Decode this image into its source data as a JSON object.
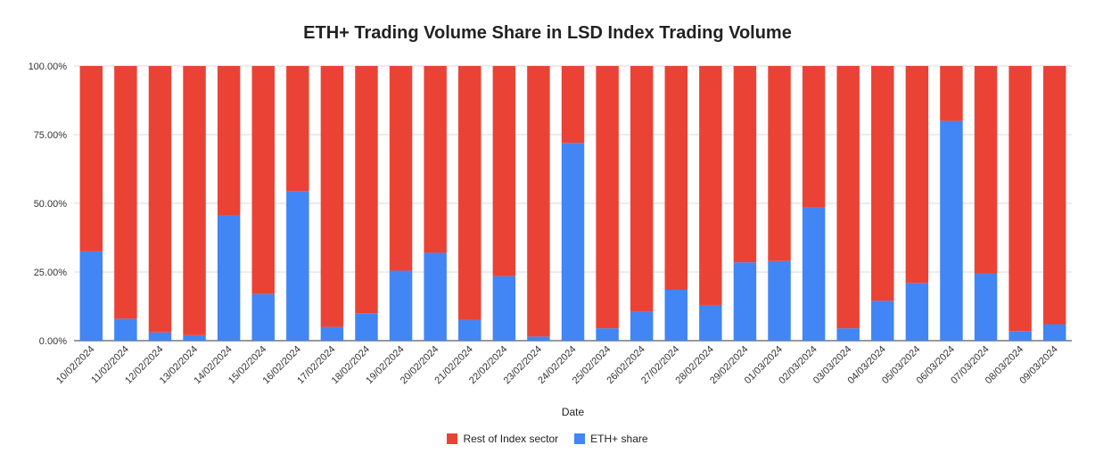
{
  "chart_data": {
    "type": "bar",
    "stacked": true,
    "title": "ETH+ Trading Volume Share in LSD Index Trading Volume",
    "xlabel": "Date",
    "ylabel": "",
    "ylim": [
      0,
      100
    ],
    "yticks": [
      "0.00%",
      "25.00%",
      "50.00%",
      "75.00%",
      "100.00%"
    ],
    "grid": true,
    "legend_position": "bottom",
    "categories": [
      "10/02/2024",
      "11/02/2024",
      "12/02/2024",
      "13/02/2024",
      "14/02/2024",
      "15/02/2024",
      "16/02/2024",
      "17/02/2024",
      "18/02/2024",
      "19/02/2024",
      "20/02/2024",
      "21/02/2024",
      "22/02/2024",
      "23/02/2024",
      "24/02/2024",
      "25/02/2024",
      "26/02/2024",
      "27/02/2024",
      "28/02/2024",
      "29/02/2024",
      "01/03/2024",
      "02/03/2024",
      "03/03/2024",
      "04/03/2024",
      "05/03/2024",
      "06/03/2024",
      "07/03/2024",
      "08/03/2024",
      "09/03/2024"
    ],
    "series": [
      {
        "name": "ETH+ share",
        "color": "#4285f4",
        "values": [
          32.5,
          8,
          3,
          2,
          45.5,
          17,
          54.5,
          5,
          10,
          25.5,
          32,
          7.5,
          23.5,
          1.5,
          72,
          4.5,
          10.5,
          18.5,
          13,
          28.5,
          29,
          48.5,
          4.5,
          14.5,
          21,
          80,
          24.5,
          3.5,
          6
        ]
      },
      {
        "name": "Rest of Index sector",
        "color": "#ea4335",
        "values": [
          67.5,
          92,
          97,
          98,
          54.5,
          83,
          45.5,
          95,
          90,
          74.5,
          68,
          92.5,
          76.5,
          98.5,
          28,
          95.5,
          89.5,
          81.5,
          87,
          71.5,
          71,
          51.5,
          95.5,
          85.5,
          79,
          20,
          75.5,
          96.5,
          94
        ]
      }
    ],
    "legend": [
      "Rest of Index sector",
      "ETH+ share"
    ]
  }
}
